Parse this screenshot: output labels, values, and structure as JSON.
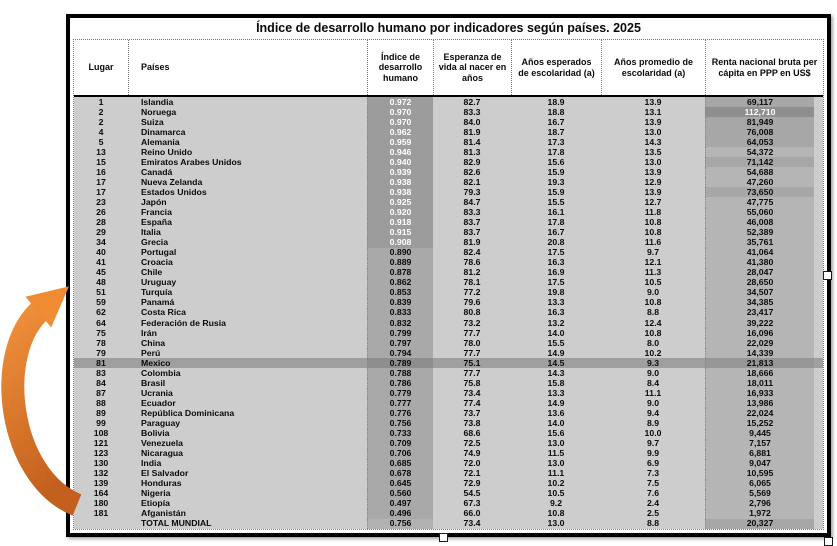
{
  "title": "Índice de desarrollo humano por indicadores según países. 2025",
  "columns": {
    "lugar": "Lugar",
    "paises": "Países",
    "hdi": "Índice de desarrollo humano",
    "life": "Esperanza de vida al nacer en años",
    "expected": "Años esperados de escolaridad (a)",
    "mean": "Años promedio de escolaridad (a)",
    "gni": "Renta nacional bruta per cápita en PPP en US$"
  },
  "rows": [
    {
      "rank": "1",
      "country": "Islandia",
      "hdi": "0.972",
      "life": "82.7",
      "eys": "18.9",
      "mys": "13.9",
      "gni": "69,117",
      "hw": true,
      "gs": 1
    },
    {
      "rank": "2",
      "country": "Noruega",
      "hdi": "0.970",
      "life": "83.3",
      "eys": "18.8",
      "mys": "13.1",
      "gni": "112,710",
      "hw": true,
      "gs": 2
    },
    {
      "rank": "2",
      "country": "Suiza",
      "hdi": "0.970",
      "life": "84.0",
      "eys": "16.7",
      "mys": "13.9",
      "gni": "81,949",
      "hw": true,
      "gs": 1
    },
    {
      "rank": "4",
      "country": "Dinamarca",
      "hdi": "0.962",
      "life": "81.9",
      "eys": "18.7",
      "mys": "13.0",
      "gni": "76,008",
      "hw": true,
      "gs": 1
    },
    {
      "rank": "5",
      "country": "Alemania",
      "hdi": "0.959",
      "life": "81.4",
      "eys": "17.3",
      "mys": "14.3",
      "gni": "64,053",
      "hw": true,
      "gs": 1
    },
    {
      "rank": "13",
      "country": "Reino Unido",
      "hdi": "0.946",
      "life": "81.3",
      "eys": "17.8",
      "mys": "13.5",
      "gni": "54,372",
      "hw": true
    },
    {
      "rank": "15",
      "country": "Emiratos Arabes Unidos",
      "hdi": "0.940",
      "life": "82.9",
      "eys": "15.6",
      "mys": "13.0",
      "gni": "71,142",
      "hw": true,
      "gs": 1
    },
    {
      "rank": "16",
      "country": "Canadá",
      "hdi": "0.939",
      "life": "82.6",
      "eys": "15.9",
      "mys": "13.9",
      "gni": "54,688",
      "hw": true
    },
    {
      "rank": "17",
      "country": "Nueva Zelanda",
      "hdi": "0.938",
      "life": "82.1",
      "eys": "19.3",
      "mys": "12.9",
      "gni": "47,260",
      "hw": true
    },
    {
      "rank": "17",
      "country": "Estados Unidos",
      "hdi": "0.938",
      "life": "79.3",
      "eys": "15.9",
      "mys": "13.9",
      "gni": "73,650",
      "hw": true,
      "gs": 1
    },
    {
      "rank": "23",
      "country": "Japón",
      "hdi": "0.925",
      "life": "84.7",
      "eys": "15.5",
      "mys": "12.7",
      "gni": "47,775",
      "hw": true
    },
    {
      "rank": "26",
      "country": "Francia",
      "hdi": "0.920",
      "life": "83.3",
      "eys": "16.1",
      "mys": "11.8",
      "gni": "55,060",
      "hw": true
    },
    {
      "rank": "28",
      "country": "España",
      "hdi": "0.918",
      "life": "83.7",
      "eys": "17.8",
      "mys": "10.8",
      "gni": "46,008",
      "hw": true
    },
    {
      "rank": "29",
      "country": "Italia",
      "hdi": "0.915",
      "life": "83.7",
      "eys": "16.7",
      "mys": "10.8",
      "gni": "52,389",
      "hw": true
    },
    {
      "rank": "34",
      "country": "Grecia",
      "hdi": "0.908",
      "life": "81.9",
      "eys": "20.8",
      "mys": "11.6",
      "gni": "35,761",
      "hw": true
    },
    {
      "rank": "40",
      "country": "Portugal",
      "hdi": "0.890",
      "life": "82.4",
      "eys": "17.5",
      "mys": "9.7",
      "gni": "41,064"
    },
    {
      "rank": "41",
      "country": "Croacia",
      "hdi": "0.889",
      "life": "78.6",
      "eys": "16.3",
      "mys": "12.1",
      "gni": "41,380"
    },
    {
      "rank": "45",
      "country": "Chile",
      "hdi": "0.878",
      "life": "81.2",
      "eys": "16.9",
      "mys": "11.3",
      "gni": "28,047"
    },
    {
      "rank": "48",
      "country": "Uruguay",
      "hdi": "0.862",
      "life": "78.1",
      "eys": "17.5",
      "mys": "10.5",
      "gni": "28,650"
    },
    {
      "rank": "51",
      "country": "Turquía",
      "hdi": "0.853",
      "life": "77.2",
      "eys": "19.8",
      "mys": "9.0",
      "gni": "34,507"
    },
    {
      "rank": "59",
      "country": "Panamá",
      "hdi": "0.839",
      "life": "79.6",
      "eys": "13.3",
      "mys": "10.8",
      "gni": "34,385"
    },
    {
      "rank": "62",
      "country": "Costa Rica",
      "hdi": "0.833",
      "life": "80.8",
      "eys": "16.3",
      "mys": "8.8",
      "gni": "23,417"
    },
    {
      "rank": "64",
      "country": "Federación de Rusia",
      "hdi": "0.832",
      "life": "73.2",
      "eys": "13.2",
      "mys": "12.4",
      "gni": "39,222"
    },
    {
      "rank": "75",
      "country": "Irán",
      "hdi": "0.799",
      "life": "77.7",
      "eys": "14.0",
      "mys": "10.8",
      "gni": "16,096"
    },
    {
      "rank": "78",
      "country": "China",
      "hdi": "0.797",
      "life": "78.0",
      "eys": "15.5",
      "mys": "8.0",
      "gni": "22,029"
    },
    {
      "rank": "79",
      "country": "Perú",
      "hdi": "0.794",
      "life": "77.7",
      "eys": "14.9",
      "mys": "10.2",
      "gni": "14,339"
    },
    {
      "rank": "81",
      "country": "Mexico",
      "hdi": "0.789",
      "life": "75.1",
      "eys": "14.5",
      "mys": "9.3",
      "gni": "21,813",
      "hl": true
    },
    {
      "rank": "83",
      "country": "Colombia",
      "hdi": "0.788",
      "life": "77.7",
      "eys": "14.3",
      "mys": "9.0",
      "gni": "18,666"
    },
    {
      "rank": "84",
      "country": "Brasil",
      "hdi": "0.786",
      "life": "75.8",
      "eys": "15.8",
      "mys": "8.4",
      "gni": "18,011"
    },
    {
      "rank": "87",
      "country": "Ucrania",
      "hdi": "0.779",
      "life": "73.4",
      "eys": "13.3",
      "mys": "11.1",
      "gni": "16,933"
    },
    {
      "rank": "88",
      "country": "Ecuador",
      "hdi": "0.777",
      "life": "77.4",
      "eys": "14.9",
      "mys": "9.0",
      "gni": "13,986"
    },
    {
      "rank": "89",
      "country": "República Dominicana",
      "hdi": "0.776",
      "life": "73.7",
      "eys": "13.6",
      "mys": "9.4",
      "gni": "22,024"
    },
    {
      "rank": "99",
      "country": "Paraguay",
      "hdi": "0.756",
      "life": "73.8",
      "eys": "14.0",
      "mys": "8.9",
      "gni": "15,252"
    },
    {
      "rank": "108",
      "country": "Bolivia",
      "hdi": "0.733",
      "life": "68.6",
      "eys": "15.6",
      "mys": "10.0",
      "gni": "9,445"
    },
    {
      "rank": "121",
      "country": "Venezuela",
      "hdi": "0.709",
      "life": "72.5",
      "eys": "13.0",
      "mys": "9.7",
      "gni": "7,157"
    },
    {
      "rank": "123",
      "country": "Nicaragua",
      "hdi": "0.706",
      "life": "74.9",
      "eys": "11.5",
      "mys": "9.9",
      "gni": "6,881"
    },
    {
      "rank": "130",
      "country": "India",
      "hdi": "0.685",
      "life": "72.0",
      "eys": "13.0",
      "mys": "6.9",
      "gni": "9,047"
    },
    {
      "rank": "132",
      "country": "El Salvador",
      "hdi": "0.678",
      "life": "72.1",
      "eys": "11.1",
      "mys": "7.3",
      "gni": "10,595"
    },
    {
      "rank": "139",
      "country": "Honduras",
      "hdi": "0.645",
      "life": "72.9",
      "eys": "10.2",
      "mys": "7.5",
      "gni": "6,065"
    },
    {
      "rank": "164",
      "country": "Nigeria",
      "hdi": "0.560",
      "life": "54.5",
      "eys": "10.5",
      "mys": "7.6",
      "gni": "5,569"
    },
    {
      "rank": "180",
      "country": "Etiopía",
      "hdi": "0.497",
      "life": "67.3",
      "eys": "9.2",
      "mys": "2.4",
      "gni": "2,796"
    },
    {
      "rank": "181",
      "country": "Afganistán",
      "hdi": "0.496",
      "life": "66.0",
      "eys": "10.8",
      "mys": "2.5",
      "gni": "1,972"
    },
    {
      "rank": "",
      "country": "TOTAL MUNDIAL",
      "hdi": "0.756",
      "life": "73.4",
      "eys": "13.0",
      "mys": "8.8",
      "gni": "20,327",
      "total": true,
      "gs": 1
    }
  ],
  "annotation": {
    "arrow": "curved-up-arrow",
    "arrow_color_top": "#F0913B",
    "arrow_color_bottom": "#C4601E"
  },
  "colors": {
    "table_background": "#CDCDCD",
    "hdi_column": "#A9A9A9",
    "hdi_column_dark": "#9C9C9C",
    "gni_column": "#B5B5B5",
    "gni_cell_darkest": "#8F8F8F",
    "highlight_row": "#9F9F9F",
    "frame_border": "#000000"
  }
}
